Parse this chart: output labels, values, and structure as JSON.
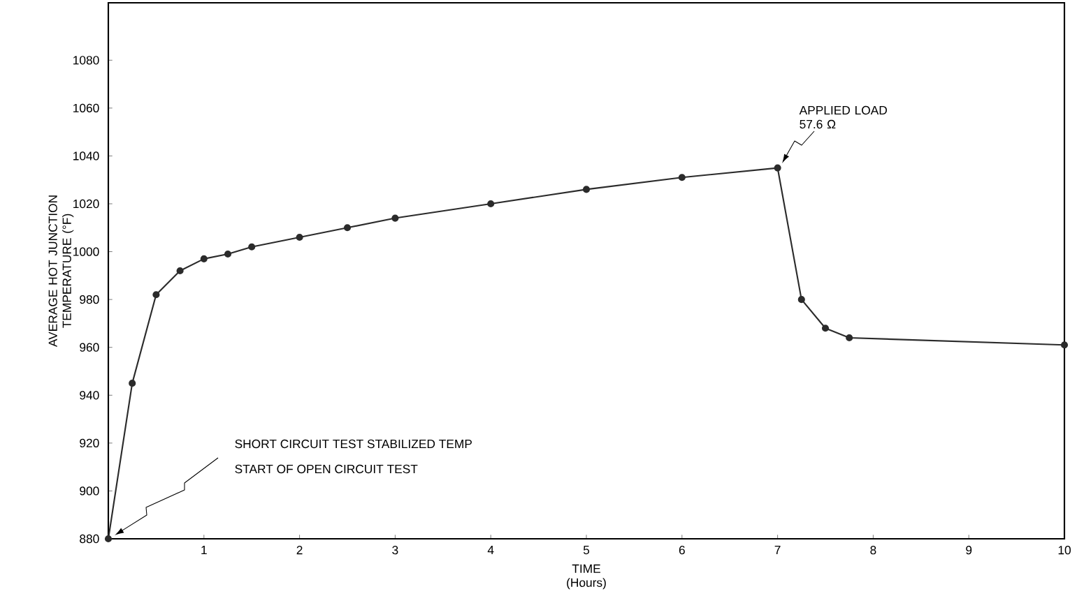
{
  "chart_data": {
    "type": "line",
    "xlabel": "TIME (Hours)",
    "ylabel": "AVERAGE HOT JUNCTION TEMPERATURE (°F)",
    "x": [
      0,
      0.25,
      0.5,
      0.75,
      1,
      1.25,
      1.5,
      2,
      2.5,
      3,
      4,
      5,
      6,
      7,
      7.25,
      7.5,
      7.75,
      10
    ],
    "series": [
      {
        "color": "#2b2b2b",
        "values": [
          880,
          945,
          982,
          992,
          997,
          999,
          1002,
          1006,
          1010,
          1014,
          1020,
          1026,
          1031,
          1035,
          980,
          968,
          964,
          961
        ]
      }
    ],
    "xlim": [
      0,
      10
    ],
    "ylim": [
      880,
      1104
    ],
    "xticks": [
      1,
      2,
      3,
      4,
      5,
      6,
      7,
      8,
      9,
      10
    ],
    "yticks": [
      880,
      900,
      920,
      940,
      960,
      980,
      1000,
      1020,
      1040,
      1060,
      1080
    ],
    "marker": "circle",
    "line_style": "solid",
    "grid": false,
    "legend": false,
    "annotations": [
      "APPLIED LOAD 57.6 Ω",
      "SHORT CIRCUIT TEST STABILIZED TEMP",
      "START OF OPEN CIRCUIT TEST"
    ]
  }
}
